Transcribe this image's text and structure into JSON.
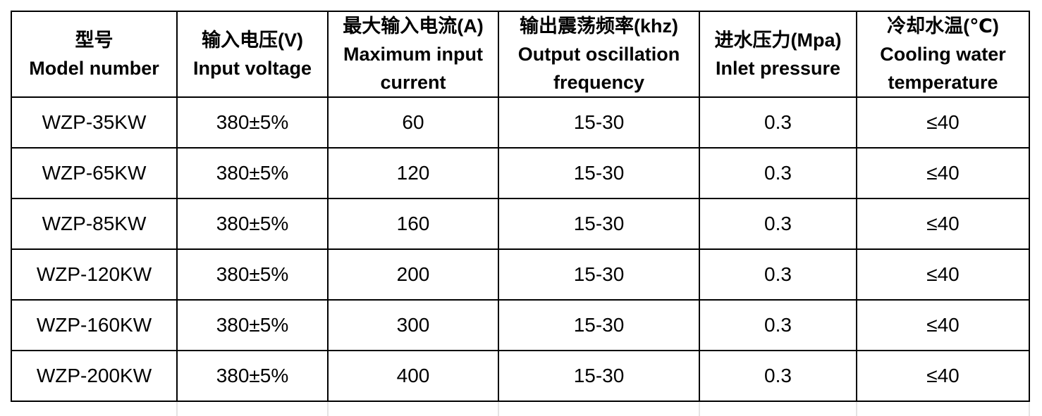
{
  "table": {
    "headers": [
      {
        "zh": "型号",
        "en": "Model number"
      },
      {
        "zh": "输入电压(V)",
        "en": "Input voltage"
      },
      {
        "zh": "最大输入电流(A)",
        "en": "Maximum input current"
      },
      {
        "zh": "输出震荡频率(khz)",
        "en": "Output oscillation frequency"
      },
      {
        "zh": "进水压力(Mpa)",
        "en": "Inlet pressure"
      },
      {
        "zh": "冷却水温(℃)",
        "en": "Cooling water temperature"
      }
    ],
    "rows": [
      [
        "WZP-35KW",
        "380±5%",
        "60",
        "15-30",
        "0.3",
        "≤40"
      ],
      [
        "WZP-65KW",
        "380±5%",
        "120",
        "15-30",
        "0.3",
        "≤40"
      ],
      [
        "WZP-85KW",
        "380±5%",
        "160",
        "15-30",
        "0.3",
        "≤40"
      ],
      [
        "WZP-120KW",
        "380±5%",
        "200",
        "15-30",
        "0.3",
        "≤40"
      ],
      [
        "WZP-160KW",
        "380±5%",
        "300",
        "15-30",
        "0.3",
        "≤40"
      ],
      [
        "WZP-200KW",
        "380±5%",
        "400",
        "15-30",
        "0.3",
        "≤40"
      ]
    ]
  }
}
